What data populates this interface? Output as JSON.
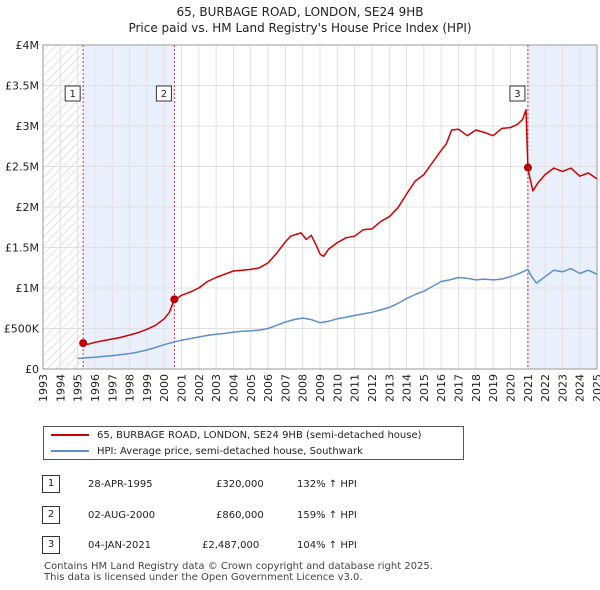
{
  "chart_data": {
    "type": "line",
    "title": "65, BURBAGE ROAD, LONDON, SE24 9HB",
    "subtitle": "Price paid vs. HM Land Registry's House Price Index (HPI)",
    "xlabel": "",
    "ylabel": "",
    "xlim": [
      1993,
      2025
    ],
    "ylim": [
      0,
      4000000
    ],
    "yticks": [
      {
        "value": 0,
        "label": "£0"
      },
      {
        "value": 500000,
        "label": "£500K"
      },
      {
        "value": 1000000,
        "label": "£1M"
      },
      {
        "value": 1500000,
        "label": "£1.5M"
      },
      {
        "value": 2000000,
        "label": "£2M"
      },
      {
        "value": 2500000,
        "label": "£2.5M"
      },
      {
        "value": 3000000,
        "label": "£3M"
      },
      {
        "value": 3500000,
        "label": "£3.5M"
      },
      {
        "value": 4000000,
        "label": "£4M"
      }
    ],
    "xticks": [
      "1993",
      "1994",
      "1995",
      "1996",
      "1997",
      "1998",
      "1999",
      "2000",
      "2001",
      "2002",
      "2003",
      "2004",
      "2005",
      "2006",
      "2007",
      "2008",
      "2009",
      "2010",
      "2011",
      "2012",
      "2013",
      "2014",
      "2015",
      "2016",
      "2017",
      "2018",
      "2019",
      "2020",
      "2021",
      "2022",
      "2023",
      "2024",
      "2025"
    ],
    "hatched_before": 1995.32,
    "shaded_periods": [
      [
        1995.32,
        2000.59
      ],
      [
        2021.01,
        2025.0
      ]
    ],
    "grid": true,
    "legend_position": "below",
    "series": [
      {
        "name": "65, BURBAGE ROAD, LONDON, SE24 9HB (semi-detached house)",
        "color": "#cc0000",
        "x": [
          1995.32,
          1995.6,
          1996.0,
          1996.5,
          1997.0,
          1997.5,
          1998.0,
          1998.5,
          1999.0,
          1999.5,
          2000.0,
          2000.3,
          2000.59,
          2000.8,
          2001.0,
          2001.5,
          2002.0,
          2002.5,
          2003.0,
          2003.5,
          2004.0,
          2004.5,
          2005.0,
          2005.5,
          2006.0,
          2006.5,
          2007.0,
          2007.3,
          2007.6,
          2007.9,
          2008.2,
          2008.5,
          2008.8,
          2009.0,
          2009.2,
          2009.5,
          2010.0,
          2010.5,
          2011.0,
          2011.5,
          2012.0,
          2012.5,
          2013.0,
          2013.5,
          2014.0,
          2014.5,
          2015.0,
          2015.5,
          2016.0,
          2016.3,
          2016.6,
          2017.0,
          2017.5,
          2018.0,
          2018.5,
          2019.0,
          2019.5,
          2020.0,
          2020.4,
          2020.7,
          2020.9,
          2021.01,
          2021.1,
          2021.3,
          2021.6,
          2022.0,
          2022.5,
          2023.0,
          2023.5,
          2024.0,
          2024.5,
          2025.0
        ],
        "values": [
          320000,
          305000,
          330000,
          350000,
          370000,
          390000,
          420000,
          450000,
          490000,
          540000,
          620000,
          700000,
          860000,
          880000,
          910000,
          950000,
          1000000,
          1080000,
          1130000,
          1170000,
          1210000,
          1220000,
          1230000,
          1250000,
          1310000,
          1430000,
          1570000,
          1640000,
          1660000,
          1680000,
          1600000,
          1650000,
          1520000,
          1420000,
          1390000,
          1480000,
          1560000,
          1620000,
          1640000,
          1720000,
          1730000,
          1820000,
          1880000,
          1990000,
          2160000,
          2320000,
          2400000,
          2550000,
          2700000,
          2780000,
          2950000,
          2960000,
          2880000,
          2950000,
          2920000,
          2880000,
          2970000,
          2980000,
          3020000,
          3080000,
          3200000,
          2487000,
          2380000,
          2200000,
          2300000,
          2400000,
          2480000,
          2440000,
          2480000,
          2380000,
          2420000,
          2350000
        ]
      },
      {
        "name": "HPI: Average price, semi-detached house, Southwark",
        "color": "#5b8fcf",
        "x": [
          1995.0,
          1995.5,
          1996.0,
          1996.5,
          1997.0,
          1997.5,
          1998.0,
          1998.5,
          1999.0,
          1999.5,
          2000.0,
          2000.5,
          2001.0,
          2001.5,
          2002.0,
          2002.5,
          2003.0,
          2003.5,
          2004.0,
          2004.5,
          2005.0,
          2005.5,
          2006.0,
          2006.5,
          2007.0,
          2007.5,
          2008.0,
          2008.5,
          2009.0,
          2009.5,
          2010.0,
          2010.5,
          2011.0,
          2011.5,
          2012.0,
          2012.5,
          2013.0,
          2013.5,
          2014.0,
          2014.5,
          2015.0,
          2015.5,
          2016.0,
          2016.5,
          2017.0,
          2017.5,
          2018.0,
          2018.5,
          2019.0,
          2019.5,
          2020.0,
          2020.5,
          2021.0,
          2021.2,
          2021.5,
          2022.0,
          2022.5,
          2023.0,
          2023.5,
          2024.0,
          2024.5,
          2025.0
        ],
        "values": [
          130000,
          140000,
          145000,
          155000,
          165000,
          178000,
          190000,
          210000,
          235000,
          265000,
          300000,
          330000,
          355000,
          375000,
          395000,
          415000,
          430000,
          440000,
          455000,
          465000,
          470000,
          480000,
          500000,
          540000,
          580000,
          610000,
          630000,
          610000,
          570000,
          590000,
          620000,
          640000,
          660000,
          680000,
          700000,
          730000,
          760000,
          810000,
          870000,
          920000,
          960000,
          1020000,
          1080000,
          1100000,
          1130000,
          1120000,
          1100000,
          1110000,
          1100000,
          1110000,
          1140000,
          1180000,
          1230000,
          1150000,
          1060000,
          1140000,
          1220000,
          1200000,
          1240000,
          1180000,
          1220000,
          1170000
        ]
      }
    ],
    "markers": [
      {
        "id": "1",
        "x": 1995.32,
        "value": 320000
      },
      {
        "id": "2",
        "x": 2000.59,
        "value": 860000
      },
      {
        "id": "3",
        "x": 2021.01,
        "value": 2487000
      }
    ]
  },
  "transactions": [
    {
      "num": "1",
      "date": "28-APR-1995",
      "price": "£320,000",
      "hpi": "132% ↑ HPI"
    },
    {
      "num": "2",
      "date": "02-AUG-2000",
      "price": "£860,000",
      "hpi": "159% ↑ HPI"
    },
    {
      "num": "3",
      "date": "04-JAN-2021",
      "price": "£2,487,000",
      "hpi": "104% ↑ HPI"
    }
  ],
  "footer": "Contains HM Land Registry data © Crown copyright and database right 2025.\nThis data is licensed under the Open Government Licence v3.0."
}
